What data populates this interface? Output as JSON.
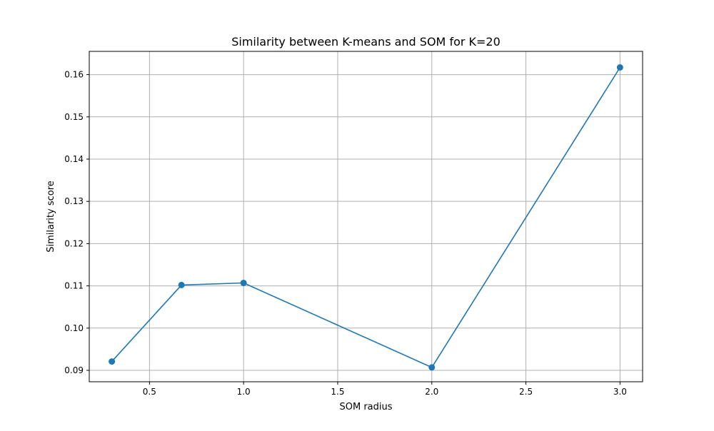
{
  "chart_data": {
    "type": "line",
    "title": "Similarity between K-means and SOM for K=20",
    "xlabel": "SOM radius",
    "ylabel": "Similarity score",
    "xlim": [
      0.18,
      3.12
    ],
    "ylim": [
      0.0873,
      0.1655
    ],
    "xticks": [
      0.5,
      1.0,
      1.5,
      2.0,
      2.5,
      3.0
    ],
    "xtick_labels": [
      "0.5",
      "1.0",
      "1.5",
      "2.0",
      "2.5",
      "3.0"
    ],
    "yticks": [
      0.09,
      0.1,
      0.11,
      0.12,
      0.13,
      0.14,
      0.15,
      0.16
    ],
    "ytick_labels": [
      "0.09",
      "0.10",
      "0.11",
      "0.12",
      "0.13",
      "0.14",
      "0.15",
      "0.16"
    ],
    "grid": true,
    "series": [
      {
        "color": "#1f77b4",
        "marker": "circle",
        "x": [
          0.3,
          0.67,
          1.0,
          2.0,
          3.0
        ],
        "y": [
          0.0921,
          0.1102,
          0.1107,
          0.0907,
          0.1617
        ]
      }
    ]
  }
}
